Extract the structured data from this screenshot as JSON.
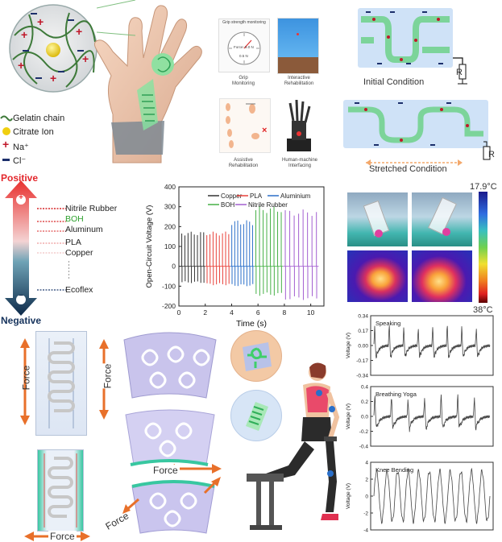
{
  "legend": {
    "gelatin_chain": "Gelatin chain",
    "citrate_ion": "Citrate Ion",
    "na": "Na⁺",
    "cl": "Cl⁻"
  },
  "triboelectric_series": {
    "positive": "Positive",
    "negative": "Negative",
    "plus_sign": "+",
    "minus_sign": "−",
    "items": [
      {
        "name": "Nitrile Rubber",
        "color": "#d62728"
      },
      {
        "name": "BOH",
        "color": "#2ca02c"
      },
      {
        "name": "Aluminum",
        "color": "#d62728"
      },
      {
        "name": "PLA",
        "color": "#e377c2"
      },
      {
        "name": "Copper",
        "color": "#e88"
      },
      {
        "name": "Ecoflex",
        "color": "#1f3a6e"
      }
    ]
  },
  "apps": {
    "grip": {
      "label": "Grip\nMonitoring",
      "header": "Grip strength monitoring",
      "readout": "Force: 9.0 N",
      "sub": "0.5 N"
    },
    "interactive": {
      "label": "Interactive\nRehabilitation"
    },
    "assistive": {
      "label": "Assistive\nRehabilitation"
    },
    "hmi": {
      "label": "Human-machine\nInterfacing"
    }
  },
  "stretch": {
    "initial": "Initial Condition",
    "stretched": "Stretched Condition",
    "r": "R"
  },
  "thermal": {
    "max_label": "17.9°C",
    "min_label": "38°C"
  },
  "force_labels": {
    "force": "Force"
  },
  "chart_data": [
    {
      "type": "line",
      "xlabel": "Time (s)",
      "ylabel": "Open-Circuit Voltage (V)",
      "xlim": [
        0,
        11
      ],
      "ylim": [
        -200,
        400
      ],
      "xticks": [
        0,
        2,
        4,
        6,
        8,
        10
      ],
      "yticks": [
        -200,
        -100,
        0,
        100,
        200,
        300,
        400
      ],
      "series": [
        {
          "name": "Copper",
          "color": "#333333",
          "t_range": [
            0.1,
            2.0
          ],
          "peak": 165,
          "trough": -80
        },
        {
          "name": "PLA",
          "color": "#e8413a",
          "t_range": [
            2.0,
            3.9
          ],
          "peak": 165,
          "trough": -90
        },
        {
          "name": "Aluminium",
          "color": "#2a6fc9",
          "t_range": [
            3.9,
            5.7
          ],
          "peak": 220,
          "trough": -95
        },
        {
          "name": "BOH",
          "color": "#46b046",
          "t_range": [
            5.7,
            7.9
          ],
          "peak": 285,
          "trough": -140
        },
        {
          "name": "Nitrile Rubber",
          "color": "#a35fd1",
          "t_range": [
            7.9,
            10.6
          ],
          "peak": 270,
          "trough": -160
        }
      ]
    },
    {
      "type": "line",
      "title": "Speaking",
      "ylabel": "Voltage (V)",
      "ylim": [
        -0.34,
        0.34
      ],
      "yticks": [
        -0.34,
        -0.17,
        0.0,
        0.17,
        0.34
      ],
      "ytick_labels": [
        "-0.34",
        "-0.17",
        "0.00",
        "0.17",
        "0.34"
      ],
      "peaks": 8
    },
    {
      "type": "line",
      "title": "Breathing Yoga",
      "ylabel": "Voltage (V)",
      "ylim": [
        -0.4,
        0.4
      ],
      "yticks": [
        -0.4,
        -0.2,
        0.0,
        0.2,
        0.4
      ],
      "ytick_labels": [
        "-0.4",
        "-0.2",
        "0.0",
        "0.2",
        "0.4"
      ],
      "peaks": 7
    },
    {
      "type": "line",
      "title": "Knee Bending",
      "ylabel": "Voltage (V)",
      "ylim": [
        -4,
        4
      ],
      "yticks": [
        -4,
        -2,
        0,
        2,
        4
      ],
      "ytick_labels": [
        "-4",
        "-2",
        "0",
        "2",
        "4"
      ],
      "peaks": 11
    }
  ]
}
